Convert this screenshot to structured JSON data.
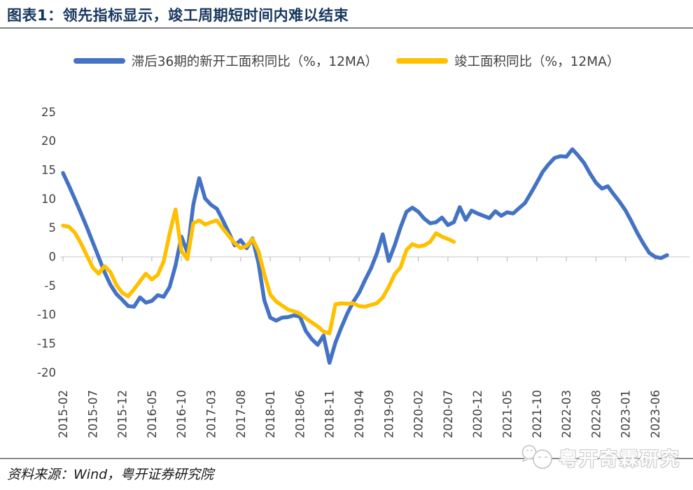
{
  "title": "图表1：领先指标显示，竣工周期短时间内难以结束",
  "source_note": "资料来源：Wind，粤开证券研究院",
  "watermark": {
    "text": "粤开奇霖研究",
    "icon": "wechat-bubbles-icon"
  },
  "colors": {
    "title": "#17375E",
    "series_blue": "#4472C4",
    "series_yellow": "#FFC000",
    "axis_text": "#404040",
    "zero_line": "#D9D9D9",
    "tick": "#BFBFBF",
    "rule": "#808080"
  },
  "chart_data": {
    "type": "line",
    "title": "图表1：领先指标显示，竣工周期短时间内难以结束",
    "xlabel": "",
    "ylabel": "",
    "ylim": [
      -20,
      25
    ],
    "y_ticks": [
      25,
      20,
      15,
      10,
      5,
      0,
      -5,
      -10,
      -15,
      -20
    ],
    "grid": false,
    "legend_position": "top",
    "x_frequency": "monthly",
    "x_start": "2015-02",
    "x_tick_labels": [
      "2015-02",
      "2015-07",
      "2015-12",
      "2016-05",
      "2016-10",
      "2017-03",
      "2017-08",
      "2018-01",
      "2018-06",
      "2018-11",
      "2019-04",
      "2019-09",
      "2020-02",
      "2020-07",
      "2020-12",
      "2021-05",
      "2021-10",
      "2022-03",
      "2022-08",
      "2023-01",
      "2023-06"
    ],
    "x_ticks_every_n_months": 5,
    "series": [
      {
        "name": "滞后36期的新开工面积同比（%，12MA）",
        "color": "#4472C4",
        "start_month": "2015-02",
        "values": [
          14.5,
          12.3,
          10.0,
          7.6,
          5.2,
          2.6,
          0.0,
          -2.6,
          -4.8,
          -6.4,
          -7.4,
          -8.5,
          -8.6,
          -7.0,
          -7.9,
          -7.6,
          -6.6,
          -6.9,
          -5.2,
          -1.5,
          3.5,
          0.8,
          9.0,
          13.6,
          10.1,
          9.0,
          8.3,
          6.3,
          4.2,
          2.0,
          2.9,
          1.5,
          3.2,
          -1.0,
          -7.5,
          -10.5,
          -11.0,
          -10.5,
          -10.4,
          -10.1,
          -10.3,
          -12.8,
          -14.2,
          -15.2,
          -13.6,
          -18.3,
          -14.8,
          -12.2,
          -9.8,
          -7.8,
          -6.2,
          -4.0,
          -2.0,
          0.6,
          3.9,
          -0.7,
          2.0,
          5.1,
          7.8,
          8.5,
          7.8,
          6.6,
          5.8,
          6.0,
          6.8,
          5.5,
          6.0,
          8.6,
          6.4,
          8.0,
          7.5,
          7.1,
          6.7,
          7.9,
          7.1,
          7.7,
          7.5,
          8.4,
          9.3,
          11.0,
          12.8,
          14.7,
          16.0,
          17.1,
          17.4,
          17.3,
          18.6,
          17.5,
          16.2,
          14.4,
          12.8,
          11.8,
          12.2,
          10.8,
          9.5,
          8.0,
          6.1,
          4.1,
          2.3,
          0.7,
          0.0,
          -0.2,
          0.3
        ]
      },
      {
        "name": "竣工面积同比（%，12MA）",
        "color": "#FFC000",
        "start_month": "2015-02",
        "values": [
          5.4,
          5.2,
          4.2,
          2.4,
          0.3,
          -1.8,
          -2.9,
          -1.6,
          -2.6,
          -4.8,
          -6.2,
          -6.8,
          -5.6,
          -4.2,
          -2.9,
          -3.9,
          -3.1,
          -0.8,
          4.0,
          8.2,
          1.0,
          -0.4,
          5.8,
          6.3,
          5.6,
          6.0,
          6.3,
          4.9,
          3.6,
          2.4,
          1.5,
          1.9,
          3.1,
          1.0,
          -3.0,
          -6.5,
          -7.7,
          -8.4,
          -9.1,
          -9.4,
          -9.8,
          -10.6,
          -11.3,
          -12.0,
          -12.9,
          -13.2,
          -8.2,
          -8.0,
          -8.1,
          -8.0,
          -8.5,
          -8.6,
          -8.3,
          -8.0,
          -7.0,
          -5.2,
          -3.0,
          -1.8,
          1.2,
          2.2,
          1.8,
          2.0,
          2.6,
          4.1,
          3.5,
          3.1,
          2.6
        ]
      }
    ]
  }
}
